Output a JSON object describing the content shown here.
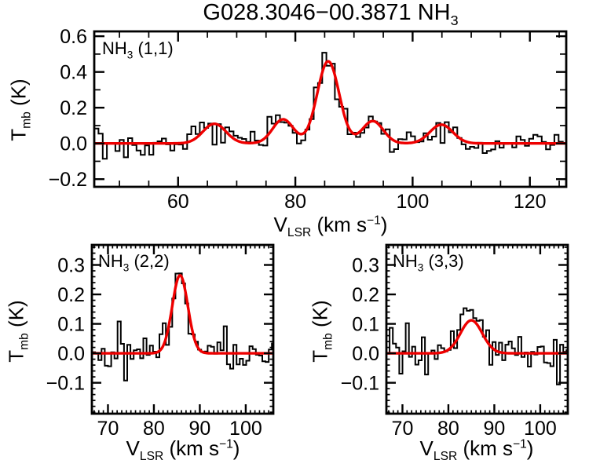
{
  "title": {
    "main": "G028.3046−00.3871 NH",
    "sub": "3"
  },
  "colors": {
    "fit_line": "#ee0000",
    "data_line": "#000000",
    "frame": "#000000",
    "background": "#ffffff"
  },
  "axis_labels": {
    "x": {
      "v": "V",
      "vsub": "LSR",
      "mid": " (km s",
      "sup": "−1",
      "close": ")"
    },
    "y": {
      "t": "T",
      "tsub": "mb",
      "unit": " (K)"
    }
  },
  "chart_data": [
    {
      "id": "nh3_11",
      "type": "line",
      "subtype": "spectrum-histogram-with-gaussian-fit",
      "label": {
        "prefix": "NH",
        "sub": "3",
        "rest": " (1,1)"
      },
      "xlabel": "V_LSR (km s−1)",
      "ylabel": "T_mb (K)",
      "xlim": [
        45.7,
        126.2
      ],
      "ylim": [
        -0.243,
        0.627
      ],
      "xticks": {
        "values": [
          60,
          80,
          100,
          120
        ],
        "labels": [
          "60",
          "80",
          "100",
          "120"
        ]
      },
      "yticks": {
        "values": [
          -0.2,
          0.0,
          0.2,
          0.4,
          0.6
        ],
        "labels": [
          "−0.2",
          "0.0",
          "0.2",
          "0.4",
          "0.6"
        ]
      },
      "x_minor_step": 5,
      "y_minor_step": 0.1,
      "baseline": 0.0,
      "noise_sigma": 0.04,
      "channel_width_kms": 0.72,
      "fit_components": [
        {
          "center": 66.2,
          "amplitude": 0.11,
          "fwhm": 4.6
        },
        {
          "center": 77.9,
          "amplitude": 0.135,
          "fwhm": 4.2
        },
        {
          "center": 85.6,
          "amplitude": 0.46,
          "fwhm": 4.4
        },
        {
          "center": 93.2,
          "amplitude": 0.125,
          "fwhm": 4.2
        },
        {
          "center": 104.9,
          "amplitude": 0.105,
          "fwhm": 4.6
        }
      ]
    },
    {
      "id": "nh3_22",
      "type": "line",
      "subtype": "spectrum-histogram-with-gaussian-fit",
      "label": {
        "prefix": "NH",
        "sub": "3",
        "rest": " (2,2)"
      },
      "xlabel": "V_LSR (km s−1)",
      "ylabel": "T_mb (K)",
      "xlim": [
        66.5,
        106.0
      ],
      "ylim": [
        -0.205,
        0.368
      ],
      "xticks": {
        "values": [
          70,
          80,
          90,
          100
        ],
        "labels": [
          "70",
          "80",
          "90",
          "100"
        ]
      },
      "yticks": {
        "values": [
          -0.1,
          0.0,
          0.1,
          0.2,
          0.3
        ],
        "labels": [
          "−0.1",
          "0.0",
          "0.1",
          "0.2",
          "0.3"
        ]
      },
      "x_minor_step": 1,
      "y_minor_step": 0.02,
      "baseline": 0.0,
      "noise_sigma": 0.038,
      "channel_width_kms": 0.7,
      "fit_components": [
        {
          "center": 85.7,
          "amplitude": 0.265,
          "fwhm": 4.0
        }
      ]
    },
    {
      "id": "nh3_33",
      "type": "line",
      "subtype": "spectrum-histogram-with-gaussian-fit",
      "label": {
        "prefix": "NH",
        "sub": "3",
        "rest": " (3,3)"
      },
      "xlabel": "V_LSR (km s−1)",
      "ylabel": "T_mb (K)",
      "xlim": [
        66.5,
        106.0
      ],
      "ylim": [
        -0.205,
        0.368
      ],
      "xticks": {
        "values": [
          70,
          80,
          90,
          100
        ],
        "labels": [
          "70",
          "80",
          "90",
          "100"
        ]
      },
      "yticks": {
        "values": [
          -0.1,
          0.0,
          0.1,
          0.2,
          0.3
        ],
        "labels": [
          "−0.1",
          "0.0",
          "0.1",
          "0.2",
          "0.3"
        ]
      },
      "x_minor_step": 1,
      "y_minor_step": 0.02,
      "baseline": 0.0,
      "noise_sigma": 0.04,
      "channel_width_kms": 0.7,
      "fit_components": [
        {
          "center": 85.0,
          "amplitude": 0.112,
          "fwhm": 5.6
        }
      ]
    }
  ]
}
